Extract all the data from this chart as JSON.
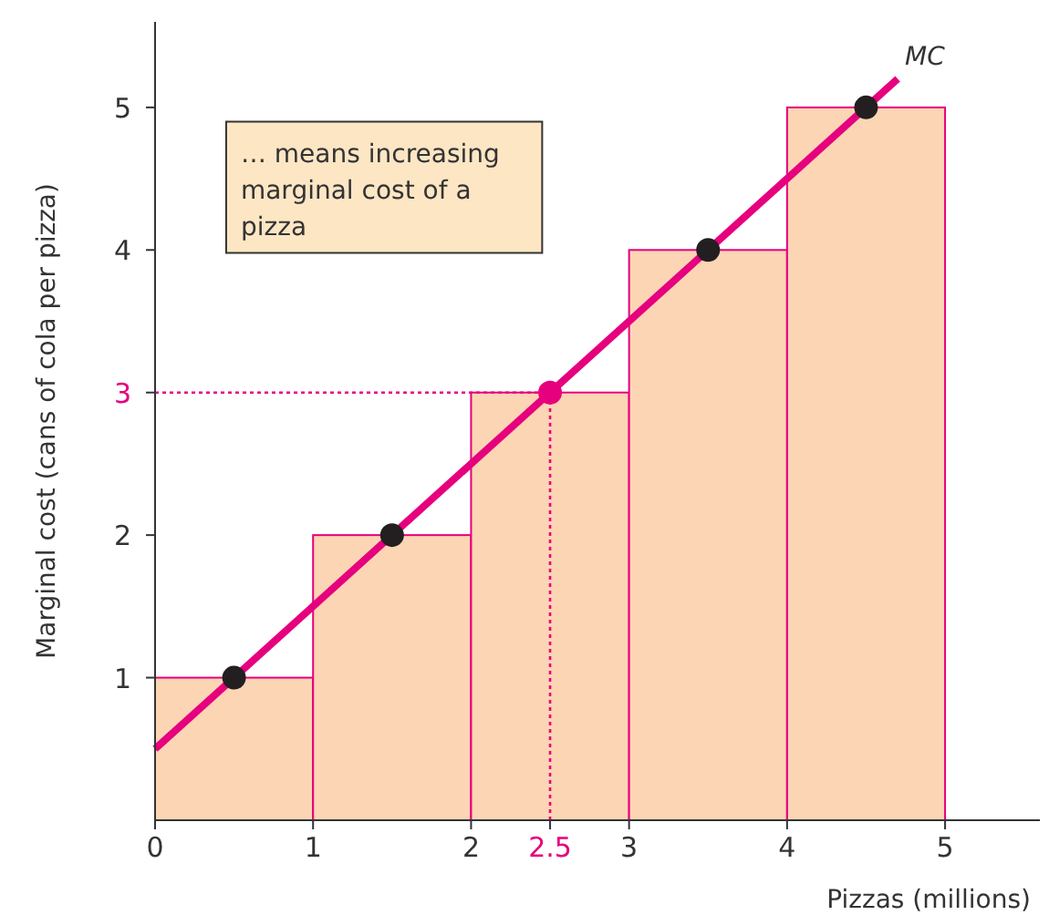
{
  "chart_data": {
    "type": "histogram",
    "xlabel": "Pizzas (millions)",
    "ylabel": "Marginal cost (cans of cola per pizza)",
    "bins": [
      0,
      1,
      2,
      3,
      4,
      5
    ],
    "series": [
      {
        "color": "#fcd5b4",
        "values": [
          1,
          2,
          3,
          4,
          5
        ]
      },
      {
        "type": "line",
        "name": "MC",
        "color": "#e6007e",
        "x": [
          0,
          4.7
        ],
        "values": [
          0.5,
          5.2
        ]
      },
      {
        "type": "scatter",
        "x": [
          0.5,
          1.5,
          2.5,
          3.5,
          4.5
        ],
        "values": [
          1,
          2,
          3,
          4,
          5
        ],
        "colors": [
          "#231f20",
          "#231f20",
          "#e6007e",
          "#231f20",
          "#231f20"
        ],
        "marker": "circle"
      }
    ],
    "xlim": [
      0,
      5.6
    ],
    "ylim": [
      0,
      5.6
    ],
    "xticks": [
      0,
      1,
      2,
      2.5,
      3,
      4,
      5
    ],
    "yticks": [
      1,
      2,
      3,
      4,
      5
    ],
    "ref_lines": [
      {
        "axis": "y",
        "value": 3,
        "color": "#e6007e",
        "line_style": "dotted"
      },
      {
        "axis": "x",
        "value": 2.5,
        "color": "#e6007e",
        "line_style": "dotted"
      }
    ],
    "annotations": [
      "… means increasing marginal cost of a pizza"
    ],
    "grid": false
  }
}
